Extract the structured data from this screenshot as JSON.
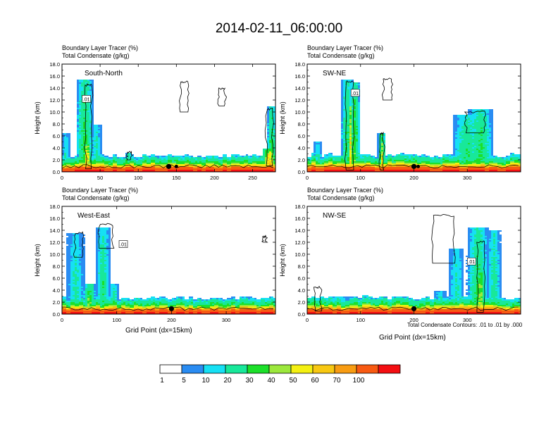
{
  "title": "2014-02-11_06:00:00",
  "colors": {
    "bins": [
      "#ffffff",
      "#2a8cf2",
      "#16e0f4",
      "#18e89a",
      "#1ce02a",
      "#9ce83c",
      "#f4f012",
      "#f8c812",
      "#f89c12",
      "#f85a12",
      "#f40e12"
    ],
    "contour": "#000000",
    "marker": "#000000"
  },
  "footnote": "Total Condensate Contours: .01 to .01 by .000",
  "colorbar_labels": [
    "1",
    "5",
    "10",
    "20",
    "30",
    "40",
    "50",
    "60",
    "70",
    "100"
  ],
  "chart_data": [
    {
      "type": "heatmap",
      "name": "South-North",
      "labels": [
        "Boundary Layer Tracer   (%)",
        "Total Condensate   (g/kg)"
      ],
      "xlabel": "",
      "ylabel": "Height (km)",
      "xlim": [
        0,
        280
      ],
      "ylim": [
        0,
        18
      ],
      "xticks": [
        0,
        50,
        100,
        150,
        200,
        250
      ],
      "yticks": [
        "0.0",
        "2.0",
        "4.0",
        "6.0",
        "8.0",
        "10.0",
        "12.0",
        "14.0",
        "16.0",
        "18.0"
      ],
      "contour_label": ".01",
      "contour_label_pos": [
        32,
        12.2
      ],
      "marker_x": 140,
      "marker2_x": 150,
      "surface": 1.2,
      "plumes": [
        {
          "x": 30,
          "w": 12,
          "h": 15.5,
          "v": 28
        },
        {
          "x": 33,
          "w": 6,
          "h": 4.5,
          "v": 65
        },
        {
          "x": 45,
          "w": 8,
          "h": 8,
          "v": 16
        },
        {
          "x": 5,
          "w": 6,
          "h": 6.5,
          "v": 14
        },
        {
          "x": 275,
          "w": 6,
          "h": 11,
          "v": 30
        },
        {
          "x": 272,
          "w": 10,
          "h": 4,
          "v": 70
        },
        {
          "x": 88,
          "w": 5,
          "h": 3.2,
          "v": 25
        }
      ],
      "contours": [
        {
          "x": 35,
          "w": 8,
          "y0": 0.5,
          "y1": 14.5
        },
        {
          "x": 160,
          "w": 10,
          "y0": 10,
          "y1": 15
        },
        {
          "x": 210,
          "w": 8,
          "y0": 11,
          "y1": 14
        },
        {
          "x": 272,
          "w": 8,
          "y0": 1,
          "y1": 10.5
        },
        {
          "x": 88,
          "w": 6,
          "y0": 2,
          "y1": 3.2
        }
      ]
    },
    {
      "type": "heatmap",
      "name": "SW-NE",
      "labels": [
        "Boundary Layer Tracer   (%)",
        "Total Condensate   (g/kg)"
      ],
      "xlabel": "",
      "ylabel": "Height (km)",
      "xlim": [
        0,
        400
      ],
      "ylim": [
        0,
        18
      ],
      "xticks": [
        0,
        100,
        200,
        300
      ],
      "yticks": [
        "0.0",
        "2.0",
        "4.0",
        "6.0",
        "8.0",
        "10.0",
        "12.0",
        "14.0",
        "16.0",
        "18.0"
      ],
      "contour_label": ".01",
      "contour_label_pos": [
        90,
        13.2
      ],
      "marker_x": 200,
      "marker2_x": 208,
      "surface": 1.3,
      "plumes": [
        {
          "x": 75,
          "w": 12,
          "h": 15.5,
          "v": 25
        },
        {
          "x": 90,
          "w": 10,
          "h": 15,
          "v": 30
        },
        {
          "x": 82,
          "w": 5,
          "h": 11,
          "v": 60
        },
        {
          "x": 140,
          "w": 8,
          "h": 6.5,
          "v": 40
        },
        {
          "x": 140,
          "w": 4,
          "h": 3.5,
          "v": 75
        },
        {
          "x": 20,
          "w": 10,
          "h": 5,
          "v": 14
        },
        {
          "x": 300,
          "w": 30,
          "h": 9.5,
          "v": 22
        },
        {
          "x": 325,
          "w": 25,
          "h": 10.5,
          "v": 25
        }
      ],
      "contours": [
        {
          "x": 80,
          "w": 14,
          "y0": 0.3,
          "y1": 15
        },
        {
          "x": 150,
          "w": 16,
          "y0": 12,
          "y1": 15.5
        },
        {
          "x": 140,
          "w": 6,
          "y0": 0.3,
          "y1": 6.5
        },
        {
          "x": 315,
          "w": 35,
          "y0": 6.5,
          "y1": 10
        }
      ]
    },
    {
      "type": "heatmap",
      "name": "West-East",
      "labels": [
        "Boundary Layer Tracer   (%)",
        "Total Condensate   (g/kg)"
      ],
      "xlabel": "Grid Point (dx=15km)",
      "ylabel": "Height (km)",
      "xlim": [
        0,
        390
      ],
      "ylim": [
        0,
        18
      ],
      "xticks": [
        0,
        100,
        200,
        300
      ],
      "yticks": [
        "0.0",
        "2.0",
        "4.0",
        "6.0",
        "8.0",
        "10.0",
        "12.0",
        "14.0",
        "16.0",
        "18.0"
      ],
      "contour_label": ".01",
      "contour_label_pos": [
        112,
        11.7
      ],
      "marker_x": 200,
      "marker2_x": 0,
      "surface": 1.2,
      "plumes": [
        {
          "x": 25,
          "w": 18,
          "h": 13.5,
          "v": 14
        },
        {
          "x": 75,
          "w": 14,
          "h": 14.5,
          "v": 20
        },
        {
          "x": 50,
          "w": 12,
          "h": 5,
          "v": 35
        },
        {
          "x": 95,
          "w": 10,
          "h": 5,
          "v": 18
        }
      ],
      "contours": [
        {
          "x": 80,
          "w": 25,
          "y0": 11,
          "y1": 15
        },
        {
          "x": 30,
          "w": 15,
          "y0": 9.5,
          "y1": 13.5
        },
        {
          "x": 370,
          "w": 5,
          "y0": 12,
          "y1": 13
        }
      ]
    },
    {
      "type": "heatmap",
      "name": "NW-SE",
      "labels": [
        "Boundary Layer Tracer   (%)",
        "Total Condensate   (g/kg)"
      ],
      "xlabel": "Grid Point (dx=15km)",
      "ylabel": "Height (km)",
      "xlim": [
        0,
        400
      ],
      "ylim": [
        0,
        18
      ],
      "xticks": [
        0,
        100,
        200,
        300
      ],
      "yticks": [
        "0.0",
        "2.0",
        "4.0",
        "6.0",
        "8.0",
        "10.0",
        "12.0",
        "14.0",
        "16.0",
        "18.0"
      ],
      "contour_label": ".01",
      "contour_label_pos": [
        308,
        8.8
      ],
      "marker_x": 200,
      "marker2_x": 0,
      "surface": 1.3,
      "plumes": [
        {
          "x": 320,
          "w": 22,
          "h": 14.5,
          "v": 24
        },
        {
          "x": 350,
          "w": 14,
          "h": 14,
          "v": 18
        },
        {
          "x": 280,
          "w": 16,
          "h": 11,
          "v": 14
        },
        {
          "x": 325,
          "w": 10,
          "h": 8,
          "v": 45
        },
        {
          "x": 250,
          "w": 14,
          "h": 4,
          "v": 14
        },
        {
          "x": 60,
          "w": 25,
          "h": 3,
          "v": 14
        }
      ],
      "contours": [
        {
          "x": 255,
          "w": 40,
          "y0": 8.5,
          "y1": 16.5
        },
        {
          "x": 325,
          "w": 14,
          "y0": 0.3,
          "y1": 12
        },
        {
          "x": 20,
          "w": 10,
          "y0": 0.5,
          "y1": 4.5
        }
      ]
    }
  ]
}
